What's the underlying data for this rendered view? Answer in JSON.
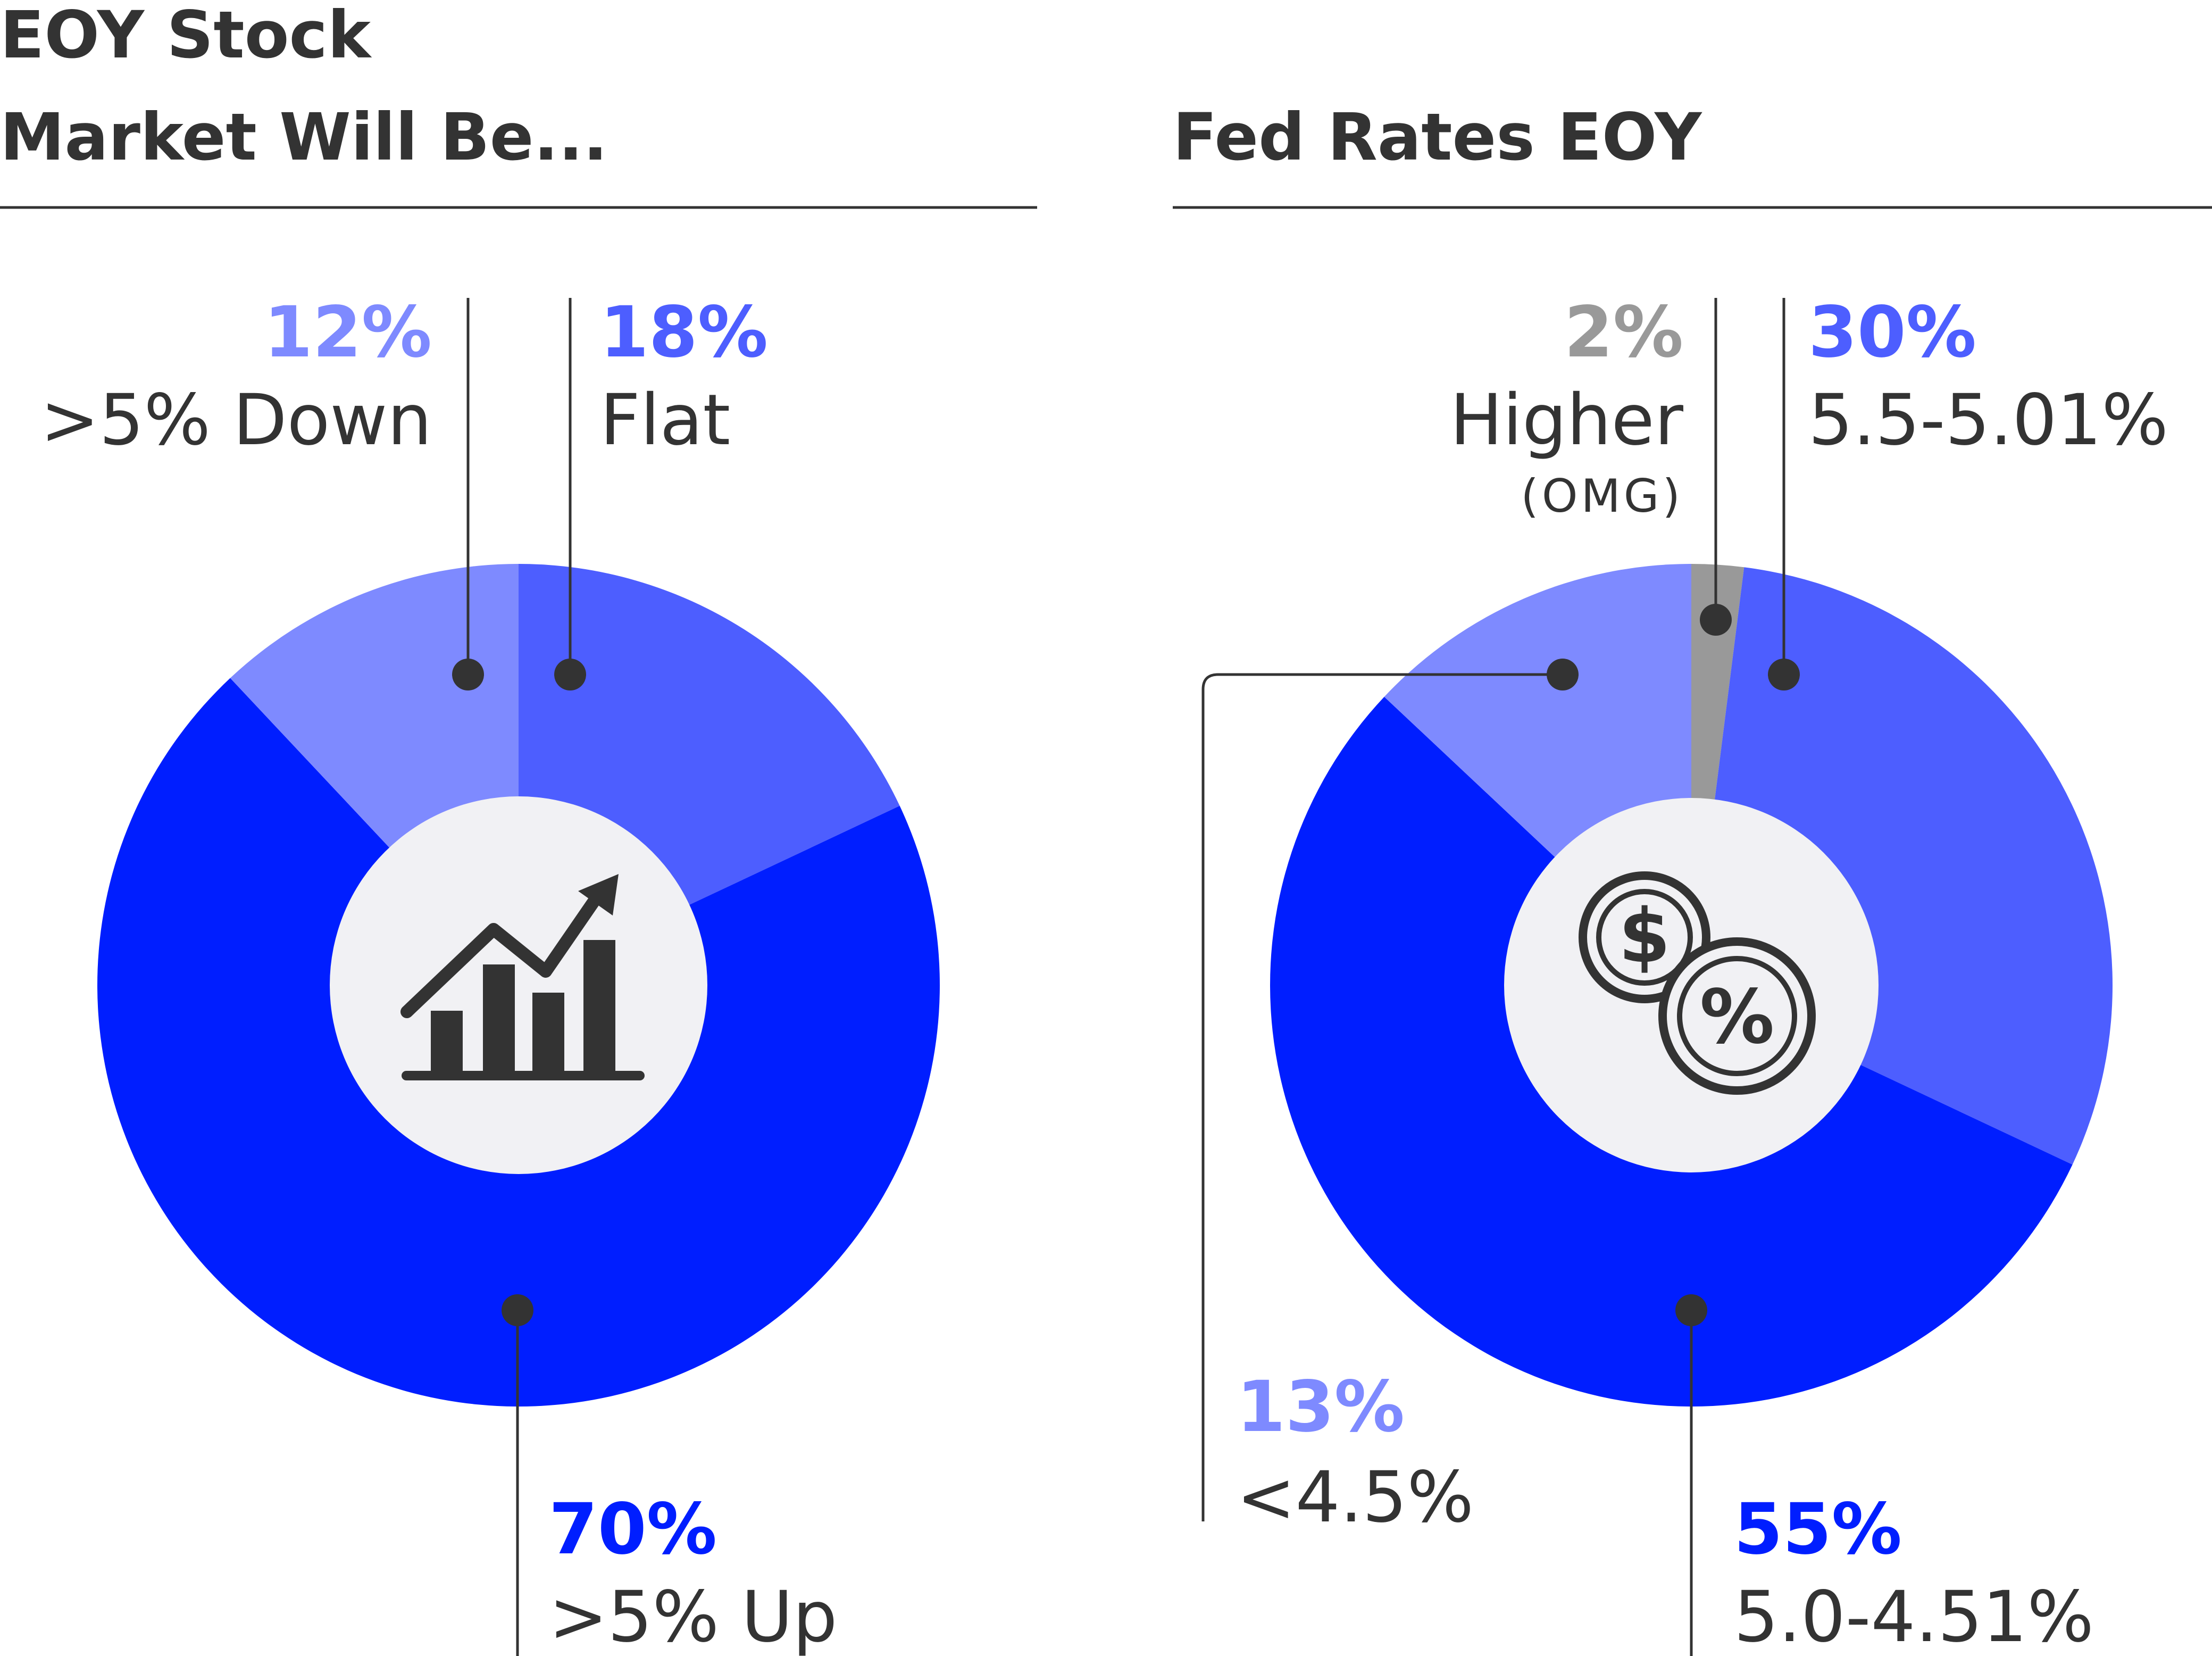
{
  "colors": {
    "ink": "#333333",
    "rule": "#333333",
    "center_disc": "#f1f1f4",
    "darkest_blue": "#001eff",
    "mid_blue": "#4d5eff",
    "light_blue": "#7e8aff",
    "gray": "#999999"
  },
  "icons": [
    "bar-chart-growth-icon",
    "dollar-percent-coins-icon"
  ],
  "chart_data": [
    {
      "type": "pie",
      "style": "donut",
      "title_lines": [
        "EOY Stock",
        "Market Will Be..."
      ],
      "slices": [
        {
          "label": ">5% Down",
          "value": 12,
          "percent_label": "12%",
          "color": "#7e8aff"
        },
        {
          "label": "Flat",
          "value": 18,
          "percent_label": "18%",
          "color": "#4d5eff"
        },
        {
          "label": ">5% Up",
          "value": 70,
          "percent_label": "70%",
          "color": "#001eff"
        }
      ]
    },
    {
      "type": "pie",
      "style": "donut",
      "title_lines": [
        "Fed Rates EOY"
      ],
      "slices": [
        {
          "label": "Higher",
          "note": "(OMG)",
          "value": 2,
          "percent_label": "2%",
          "color": "#999999"
        },
        {
          "label": "5.5-5.01%",
          "value": 30,
          "percent_label": "30%",
          "color": "#4d5eff"
        },
        {
          "label": "5.0-4.51%",
          "value": 55,
          "percent_label": "55%",
          "color": "#001eff"
        },
        {
          "label": "<4.5%",
          "value": 13,
          "percent_label": "13%",
          "color": "#7e8aff"
        }
      ]
    }
  ]
}
